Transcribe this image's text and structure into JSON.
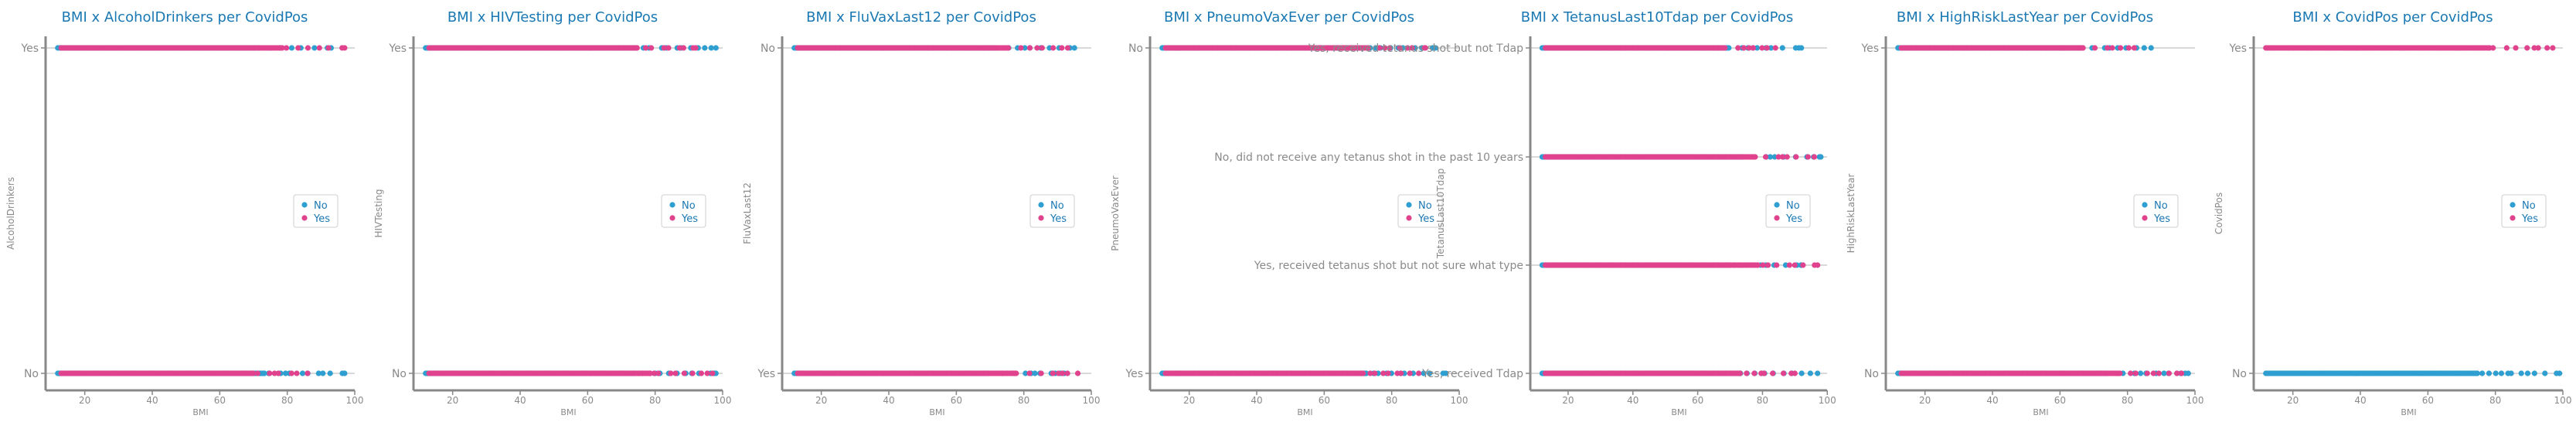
{
  "colors": {
    "no": "#2E9FD0",
    "yes": "#E0428E",
    "title": "#1A78B3",
    "axis_text": "#8A8A8A",
    "axis_line": "#888888",
    "guide": "#D9D9D9"
  },
  "legend": {
    "placement": "right",
    "entries": [
      "No",
      "Yes"
    ]
  },
  "chart_data": [
    {
      "type": "scatter",
      "title": "BMI x AlcoholDrinkers per CovidPos",
      "xlabel": "BMI",
      "ylabel": "AlcoholDrinkers",
      "xlim": [
        10,
        100
      ],
      "xticks": [
        20,
        40,
        60,
        80,
        100
      ],
      "categories": [
        "Yes",
        "No"
      ],
      "series": [
        {
          "name": "No",
          "rows": [
            {
              "category": "Yes",
              "min": 12,
              "max": 93
            },
            {
              "category": "No",
              "min": 12,
              "max": 97
            }
          ]
        },
        {
          "name": "Yes",
          "rows": [
            {
              "category": "Yes",
              "min": 13,
              "max": 97
            },
            {
              "category": "No",
              "min": 13,
              "max": 86
            }
          ]
        }
      ]
    },
    {
      "type": "scatter",
      "title": "BMI x HIVTesting per CovidPos",
      "xlabel": "BMI",
      "ylabel": "HIVTesting",
      "xlim": [
        10,
        100
      ],
      "xticks": [
        20,
        40,
        60,
        80,
        100
      ],
      "categories": [
        "Yes",
        "No"
      ],
      "series": [
        {
          "name": "No",
          "rows": [
            {
              "category": "Yes",
              "min": 12,
              "max": 98
            },
            {
              "category": "No",
              "min": 12,
              "max": 98
            }
          ]
        },
        {
          "name": "Yes",
          "rows": [
            {
              "category": "Yes",
              "min": 13,
              "max": 92
            },
            {
              "category": "No",
              "min": 13,
              "max": 97
            }
          ]
        }
      ]
    },
    {
      "type": "scatter",
      "title": "BMI x FluVaxLast12 per CovidPos",
      "xlabel": "BMI",
      "ylabel": "FluVaxLast12",
      "xlim": [
        10,
        100
      ],
      "xticks": [
        20,
        40,
        60,
        80,
        100
      ],
      "categories": [
        "No",
        "Yes"
      ],
      "series": [
        {
          "name": "No",
          "rows": [
            {
              "category": "No",
              "min": 12,
              "max": 95
            },
            {
              "category": "Yes",
              "min": 12,
              "max": 92
            }
          ]
        },
        {
          "name": "Yes",
          "rows": [
            {
              "category": "No",
              "min": 13,
              "max": 93
            },
            {
              "category": "Yes",
              "min": 13,
              "max": 96
            }
          ]
        }
      ]
    },
    {
      "type": "scatter",
      "title": "BMI x PneumoVaxEver per CovidPos",
      "xlabel": "BMI",
      "ylabel": "PneumoVaxEver",
      "xlim": [
        10,
        100
      ],
      "xticks": [
        20,
        40,
        60,
        80,
        100
      ],
      "categories": [
        "No",
        "Yes"
      ],
      "series": [
        {
          "name": "No",
          "rows": [
            {
              "category": "No",
              "min": 12,
              "max": 93
            },
            {
              "category": "Yes",
              "min": 12,
              "max": 96
            }
          ]
        },
        {
          "name": "Yes",
          "rows": [
            {
              "category": "No",
              "min": 13,
              "max": 90
            },
            {
              "category": "Yes",
              "min": 13,
              "max": 88
            }
          ]
        }
      ]
    },
    {
      "type": "scatter",
      "title": "BMI x TetanusLast10Tdap per CovidPos",
      "xlabel": "BMI",
      "ylabel": "TetanusLast10Tdap",
      "xlim": [
        10,
        100
      ],
      "xticks": [
        20,
        40,
        60,
        80,
        100
      ],
      "categories": [
        "Yes, received tetanus shot but not Tdap",
        "No, did not receive any tetanus shot in the past 10 years",
        "Yes, received tetanus shot but not sure what type",
        "Yes, received Tdap"
      ],
      "series": [
        {
          "name": "No",
          "rows": [
            {
              "category": "Yes, received tetanus shot but not Tdap",
              "min": 12,
              "max": 92
            },
            {
              "category": "No, did not receive any tetanus shot in the past 10 years",
              "min": 12,
              "max": 98
            },
            {
              "category": "Yes, received tetanus shot but not sure what type",
              "min": 12,
              "max": 92
            },
            {
              "category": "Yes, received Tdap",
              "min": 12,
              "max": 97
            }
          ]
        },
        {
          "name": "Yes",
          "rows": [
            {
              "category": "Yes, received tetanus shot but not Tdap",
              "min": 13,
              "max": 84
            },
            {
              "category": "No, did not receive any tetanus shot in the past 10 years",
              "min": 13,
              "max": 96
            },
            {
              "category": "Yes, received tetanus shot but not sure what type",
              "min": 13,
              "max": 97
            },
            {
              "category": "Yes, received Tdap",
              "min": 13,
              "max": 90
            }
          ]
        }
      ]
    },
    {
      "type": "scatter",
      "title": "BMI x HighRiskLastYear per CovidPos",
      "xlabel": "BMI",
      "ylabel": "HighRiskLastYear",
      "xlim": [
        10,
        100
      ],
      "xticks": [
        20,
        40,
        60,
        80,
        100
      ],
      "categories": [
        "Yes",
        "No"
      ],
      "series": [
        {
          "name": "No",
          "rows": [
            {
              "category": "Yes",
              "min": 12,
              "max": 87
            },
            {
              "category": "No",
              "min": 12,
              "max": 98
            }
          ]
        },
        {
          "name": "Yes",
          "rows": [
            {
              "category": "Yes",
              "min": 13,
              "max": 82
            },
            {
              "category": "No",
              "min": 13,
              "max": 96
            }
          ]
        }
      ]
    },
    {
      "type": "scatter",
      "title": "BMI x CovidPos per CovidPos",
      "xlabel": "BMI",
      "ylabel": "CovidPos",
      "xlim": [
        10,
        100
      ],
      "xticks": [
        20,
        40,
        60,
        80,
        100
      ],
      "categories": [
        "Yes",
        "No"
      ],
      "series": [
        {
          "name": "No",
          "rows": [
            {
              "category": "No",
              "min": 12,
              "max": 99
            }
          ]
        },
        {
          "name": "Yes",
          "rows": [
            {
              "category": "Yes",
              "min": 12,
              "max": 97
            }
          ]
        }
      ]
    }
  ]
}
